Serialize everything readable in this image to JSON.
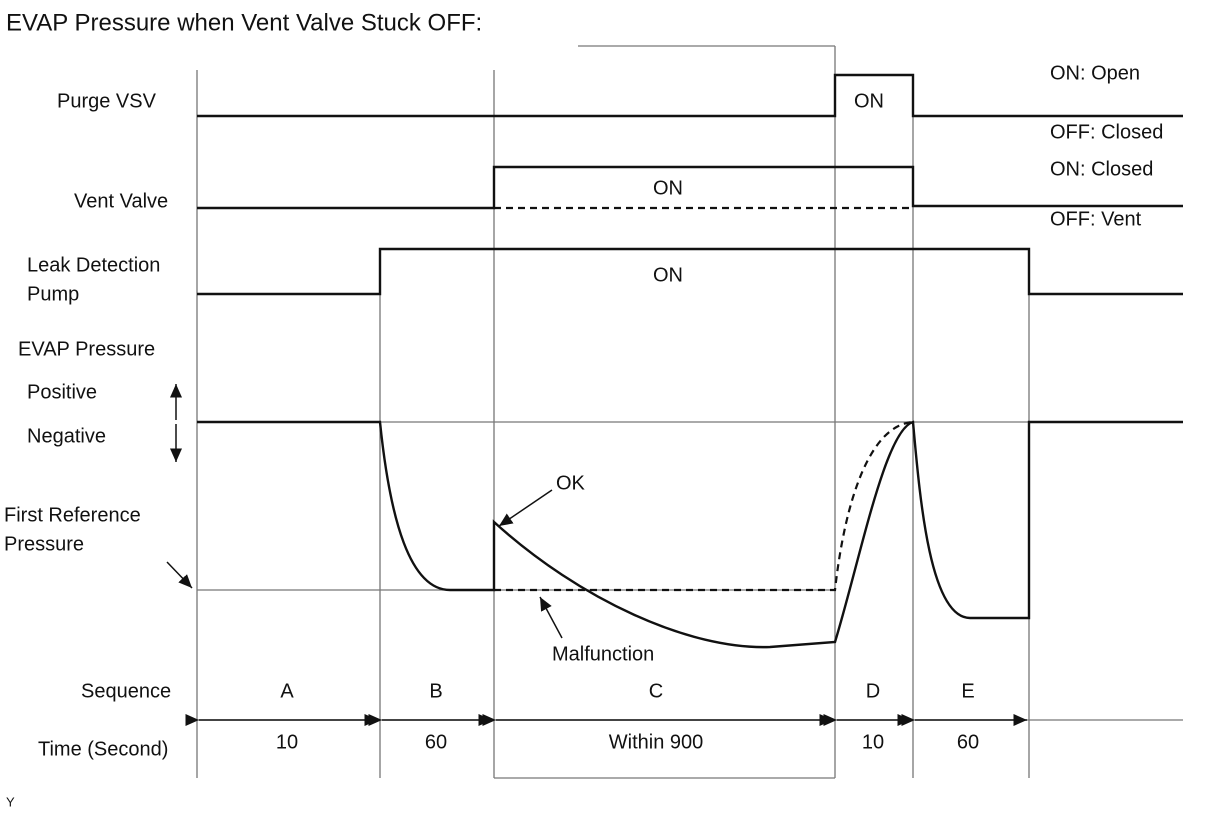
{
  "title": "EVAP Pressure when Vent Valve Stuck OFF:",
  "signals": {
    "purge_vsv": {
      "label": "Purge VSV",
      "on_state": "ON: Open",
      "off_state": "OFF: Closed",
      "on_text": "ON"
    },
    "vent_valve": {
      "label": "Vent Valve",
      "on_state": "ON: Closed",
      "off_state": "OFF: Vent",
      "on_text": "ON"
    },
    "leak_detection_pump": {
      "label": [
        "Leak Detection",
        "Pump"
      ],
      "on_text": "ON"
    },
    "evap_pressure": {
      "label": "EVAP Pressure",
      "positive": "Positive",
      "negative": "Negative",
      "reference": [
        "First Reference",
        "Pressure"
      ],
      "ok": "OK",
      "malfunction": "Malfunction"
    }
  },
  "sequence": {
    "label": "Sequence",
    "steps": [
      "A",
      "B",
      "C",
      "D",
      "E"
    ]
  },
  "time": {
    "label": "Time (Second)",
    "durations": [
      "10",
      "60",
      "Within 900",
      "10",
      "60"
    ]
  },
  "footnote": "Y"
}
